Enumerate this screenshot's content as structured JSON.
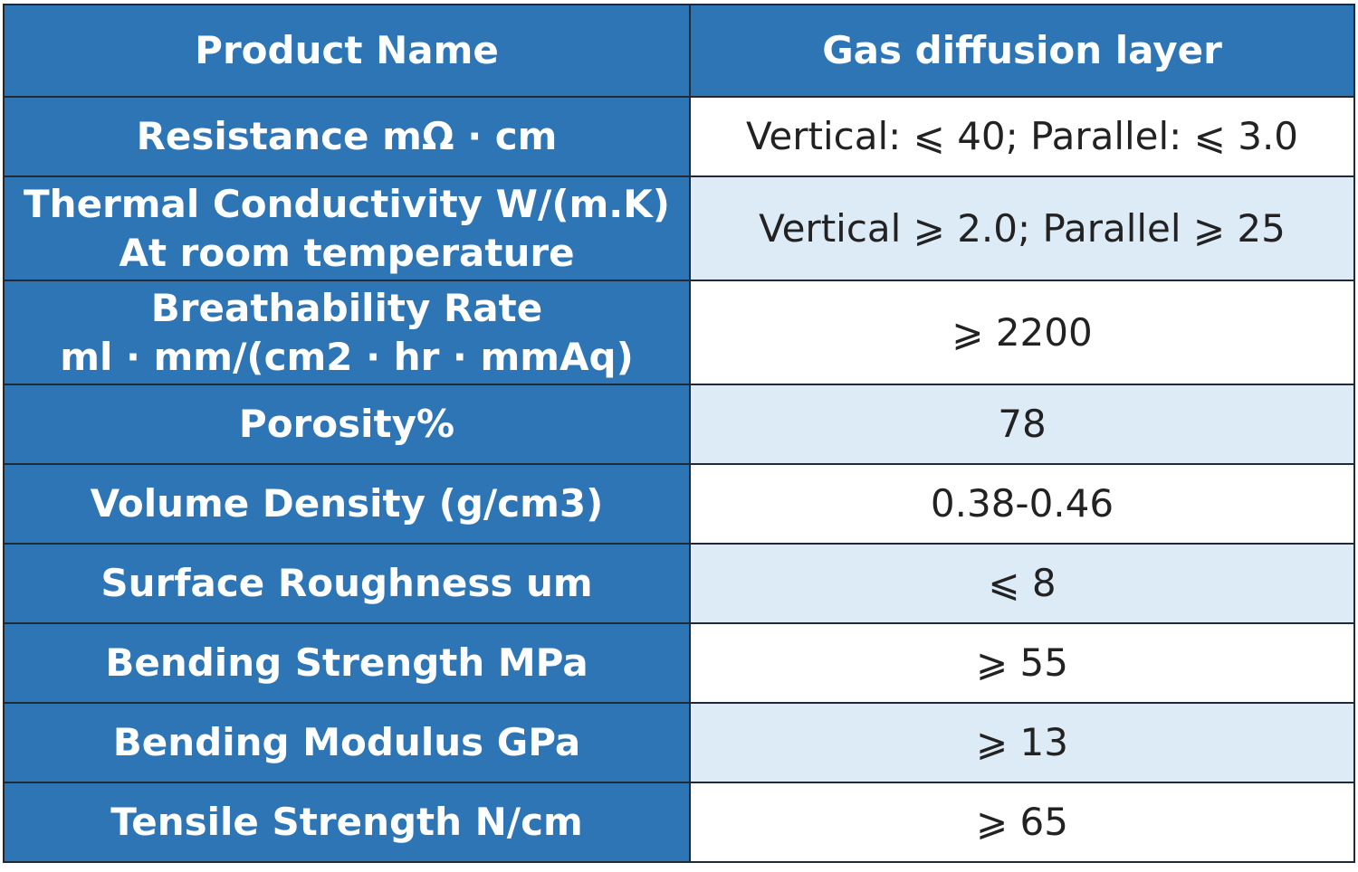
{
  "table": {
    "header": [
      "Product Name",
      "Gas diffusion layer"
    ],
    "rows": [
      {
        "label": [
          "Resistance mΩ · cm"
        ],
        "value": "Vertical: ⩽ 40; Parallel: ⩽ 3.0"
      },
      {
        "label": [
          "Thermal Conductivity W/(m.K)",
          "At room temperature"
        ],
        "value": "Vertical ⩾ 2.0; Parallel ⩾ 25"
      },
      {
        "label": [
          "Breathability Rate",
          "ml · mm/(cm2 · hr · mmAq)"
        ],
        "value": "⩾ 2200"
      },
      {
        "label": [
          "Porosity%"
        ],
        "value": "78"
      },
      {
        "label": [
          "Volume Density (g/cm3)"
        ],
        "value": "0.38-0.46"
      },
      {
        "label": [
          "Surface Roughness um"
        ],
        "value": "⩽ 8"
      },
      {
        "label": [
          "Bending Strength MPa"
        ],
        "value": "⩾ 55"
      },
      {
        "label": [
          "Bending Modulus GPa"
        ],
        "value": "⩾ 13"
      },
      {
        "label": [
          "Tensile Strength N/cm"
        ],
        "value": "⩾ 65"
      }
    ]
  }
}
